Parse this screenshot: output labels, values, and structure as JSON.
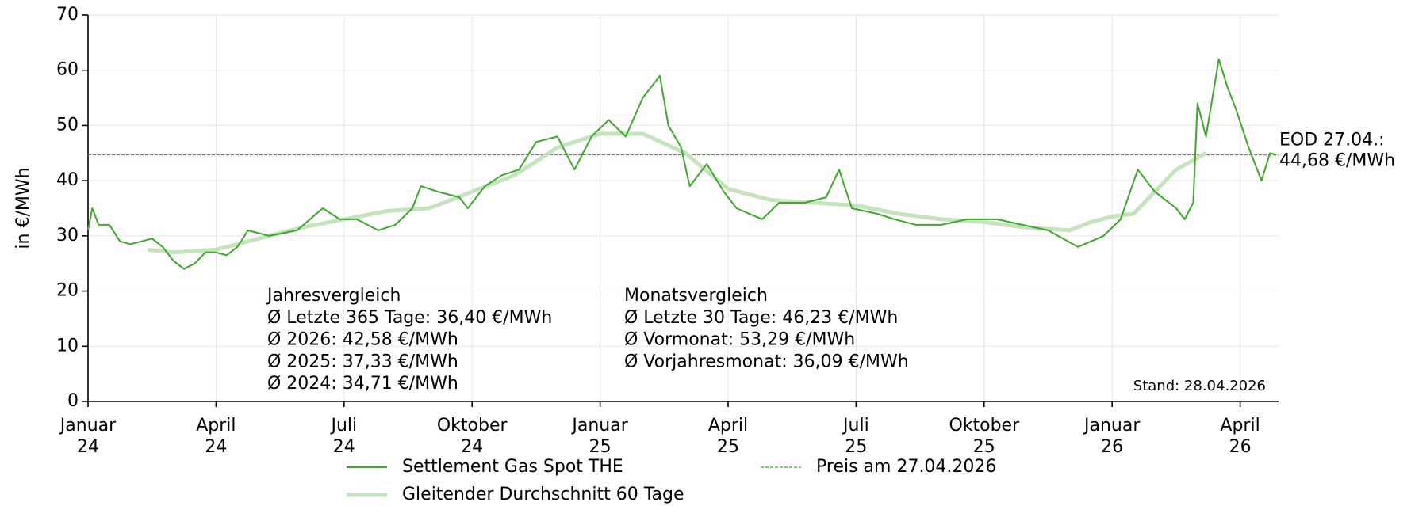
{
  "chart_data": {
    "type": "line",
    "ylabel": "in €/MWh",
    "xlim": [
      0,
      27.9
    ],
    "ylim": [
      0,
      70
    ],
    "yticks": [
      0,
      10,
      20,
      30,
      40,
      50,
      60,
      70
    ],
    "xticks": [
      {
        "value": 0,
        "label": "Januar\n24"
      },
      {
        "value": 3,
        "label": "April\n24"
      },
      {
        "value": 6,
        "label": "Juli\n24"
      },
      {
        "value": 9,
        "label": "Oktober\n24"
      },
      {
        "value": 12,
        "label": "Januar\n25"
      },
      {
        "value": 15,
        "label": "April\n25"
      },
      {
        "value": 18,
        "label": "Juli\n25"
      },
      {
        "value": 21,
        "label": "Oktober\n25"
      },
      {
        "value": 24,
        "label": "Januar\n26"
      },
      {
        "value": 27,
        "label": "April\n26"
      }
    ],
    "grid": true,
    "series": [
      {
        "name": "Settlement Gas Spot THE",
        "color": "#3ea82c",
        "width": 2,
        "x": [
          0,
          0.1,
          0.25,
          0.5,
          0.75,
          1.0,
          1.25,
          1.5,
          1.75,
          2.0,
          2.25,
          2.5,
          2.75,
          3.0,
          3.25,
          3.5,
          3.75,
          4.24,
          4.9,
          5.5,
          5.9,
          6.3,
          6.8,
          7.2,
          7.6,
          7.8,
          8.2,
          8.7,
          8.9,
          9.3,
          9.7,
          10.1,
          10.5,
          11.0,
          11.4,
          11.8,
          12.2,
          12.6,
          13.0,
          13.4,
          13.6,
          13.9,
          14.1,
          14.5,
          14.9,
          15.2,
          15.8,
          16.2,
          16.8,
          17.3,
          17.6,
          17.9,
          18.5,
          18.9,
          19.4,
          20.0,
          20.6,
          21.3,
          21.9,
          22.5,
          23.2,
          23.8,
          24.2,
          24.6,
          25.0,
          25.5,
          25.7,
          25.9,
          26.0,
          26.2,
          26.5,
          26.7,
          26.9,
          27.2,
          27.5,
          27.7,
          27.85
        ],
        "values": [
          31,
          35,
          32,
          32,
          29,
          28.5,
          29,
          29.5,
          28,
          25.5,
          24,
          25,
          27,
          27,
          26.5,
          28,
          31,
          30,
          31,
          35,
          33,
          33,
          31,
          32,
          35,
          39,
          38,
          37,
          35,
          39,
          41,
          42,
          47,
          48,
          42,
          48,
          51,
          48,
          55,
          59,
          50,
          46,
          39,
          43,
          38,
          35,
          33,
          36,
          36,
          37,
          42,
          35,
          34,
          33,
          32,
          32,
          33,
          33,
          32,
          31,
          28,
          30,
          33,
          42,
          38,
          35,
          33,
          36,
          54,
          48,
          62,
          57,
          53,
          46,
          40,
          45,
          44.68
        ]
      },
      {
        "name": "Gleitender Durchschnitt 60 Tage",
        "color": "#c5e3bd",
        "width": 5,
        "x": [
          1.4,
          2,
          3,
          4,
          5,
          6,
          7,
          8,
          9,
          10,
          11,
          12,
          13,
          14,
          15,
          16,
          17,
          18,
          19,
          20,
          21,
          22,
          23,
          23.5,
          24,
          24.5,
          25,
          25.5,
          26.2
        ],
        "values": [
          27.5,
          27,
          27.5,
          29.5,
          31.5,
          33,
          34.5,
          35,
          38,
          41,
          46,
          48.5,
          48.5,
          45,
          38.5,
          36.5,
          36,
          35.5,
          34,
          33,
          32.5,
          31.5,
          31,
          32.5,
          33.5,
          34,
          38,
          42,
          45
        ]
      }
    ],
    "reference_line": {
      "name": "Preis am 27.04.2026",
      "value": 44.68,
      "color": "#3ea82c",
      "label": "EOD 27.04.:",
      "value_label": "44,68 €/MWh"
    },
    "annotations": [
      {
        "lines": [
          "Jahresvergleich",
          "Ø Letzte 365 Tage: 36,40 €/MWh",
          "Ø 2026: 42,58 €/MWh",
          "Ø 2025: 37,33 €/MWh",
          "Ø 2024: 34,71 €/MWh"
        ]
      },
      {
        "lines": [
          "Monatsvergleich",
          "Ø Letzte 30 Tage: 46,23 €/MWh",
          "Ø Vormonat: 53,29 €/MWh",
          "Ø Vorjahresmonat: 36,09 €/MWh"
        ]
      }
    ],
    "footnote": "Stand: 28.04.2026"
  }
}
